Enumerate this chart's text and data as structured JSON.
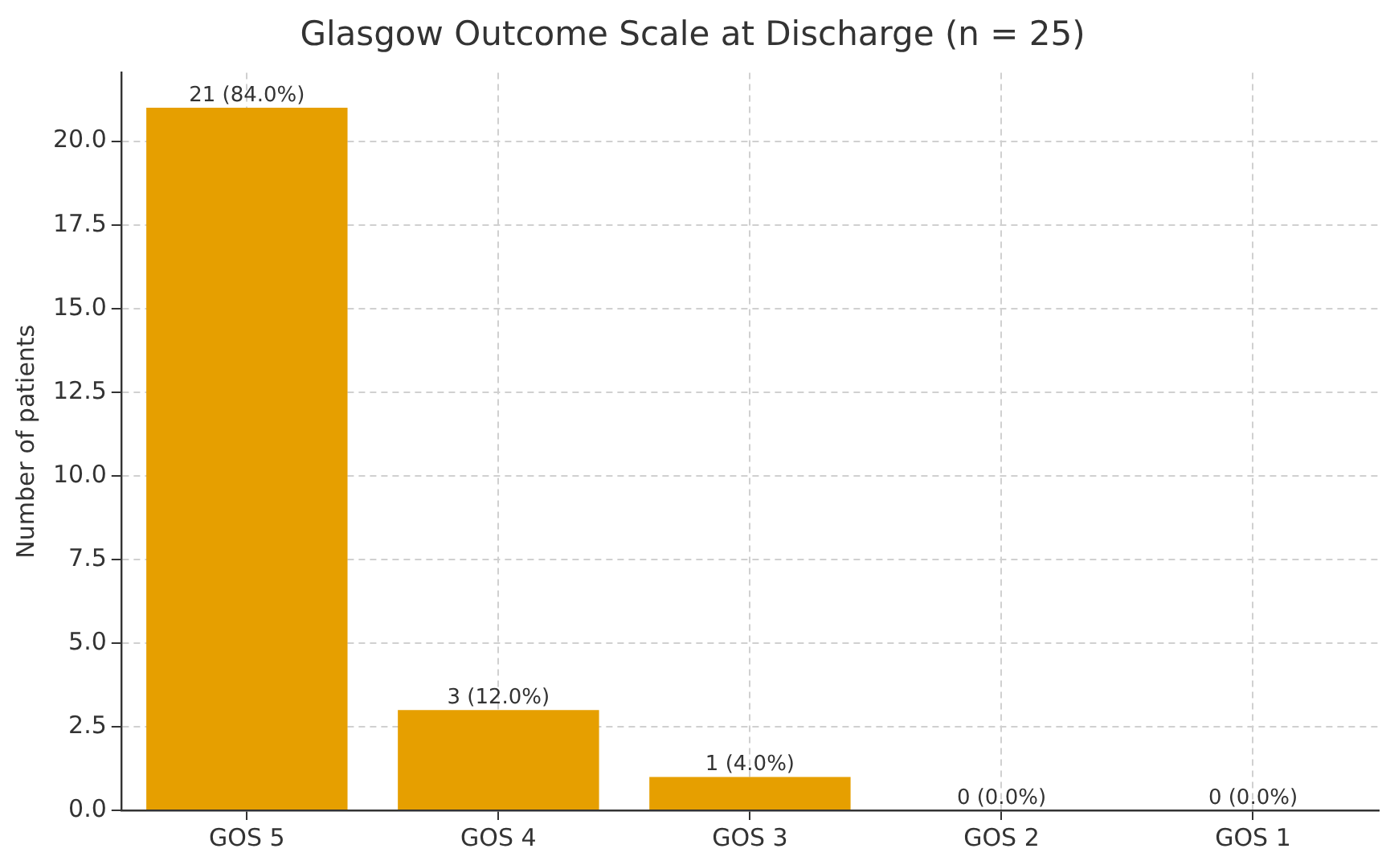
{
  "chart_data": {
    "type": "bar",
    "title": "Glasgow Outcome Scale at Discharge (n = 25)",
    "ylabel": "Number of patients",
    "categories": [
      "GOS 5",
      "GOS 4",
      "GOS 3",
      "GOS 2",
      "GOS 1"
    ],
    "values": [
      21,
      3,
      1,
      0,
      0
    ],
    "color": "#e69f00",
    "value_labels": [
      "21 (84.0%)",
      "3 (12.0%)",
      "1 (4.0%)",
      "0 (0.0%)",
      "0 (0.0%)"
    ],
    "ylim": [
      0,
      22.05
    ],
    "yticks": [
      {
        "value": 0,
        "label": "0.0"
      },
      {
        "value": 2.5,
        "label": "2.5"
      },
      {
        "value": 5,
        "label": "5.0"
      },
      {
        "value": 7.5,
        "label": "7.5"
      },
      {
        "value": 10,
        "label": "10.0"
      },
      {
        "value": 12.5,
        "label": "12.5"
      },
      {
        "value": 15,
        "label": "15.0"
      },
      {
        "value": 17.5,
        "label": "17.5"
      },
      {
        "value": 20,
        "label": "20.0"
      }
    ],
    "grid": true,
    "legend": false
  }
}
